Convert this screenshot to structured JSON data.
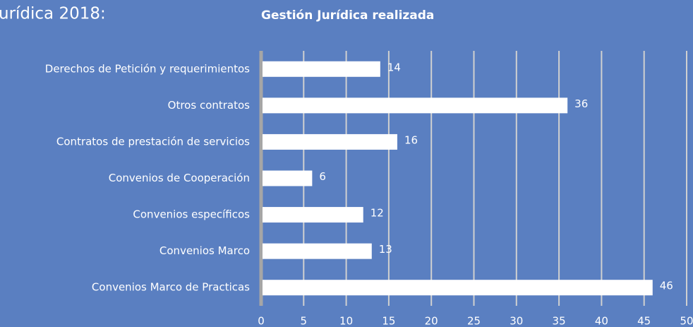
{
  "page_heading": "urídica 2018:",
  "chart_data": {
    "type": "bar",
    "orientation": "horizontal",
    "title": "Gestión Jurídica realizada",
    "categories": [
      "Derechos de Petición y requerimientos",
      "Otros contratos",
      "Contratos de prestación de servicios",
      "Convenios de Cooperación",
      "Convenios específicos",
      "Convenios Marco",
      "Convenios Marco de Practicas"
    ],
    "values": [
      14,
      36,
      16,
      6,
      12,
      13,
      46
    ],
    "color": "#ffffff",
    "xlim": [
      0,
      50
    ],
    "xticks": [
      0,
      5,
      10,
      15,
      20,
      25,
      30,
      35,
      40,
      45,
      50
    ],
    "grid": true
  }
}
